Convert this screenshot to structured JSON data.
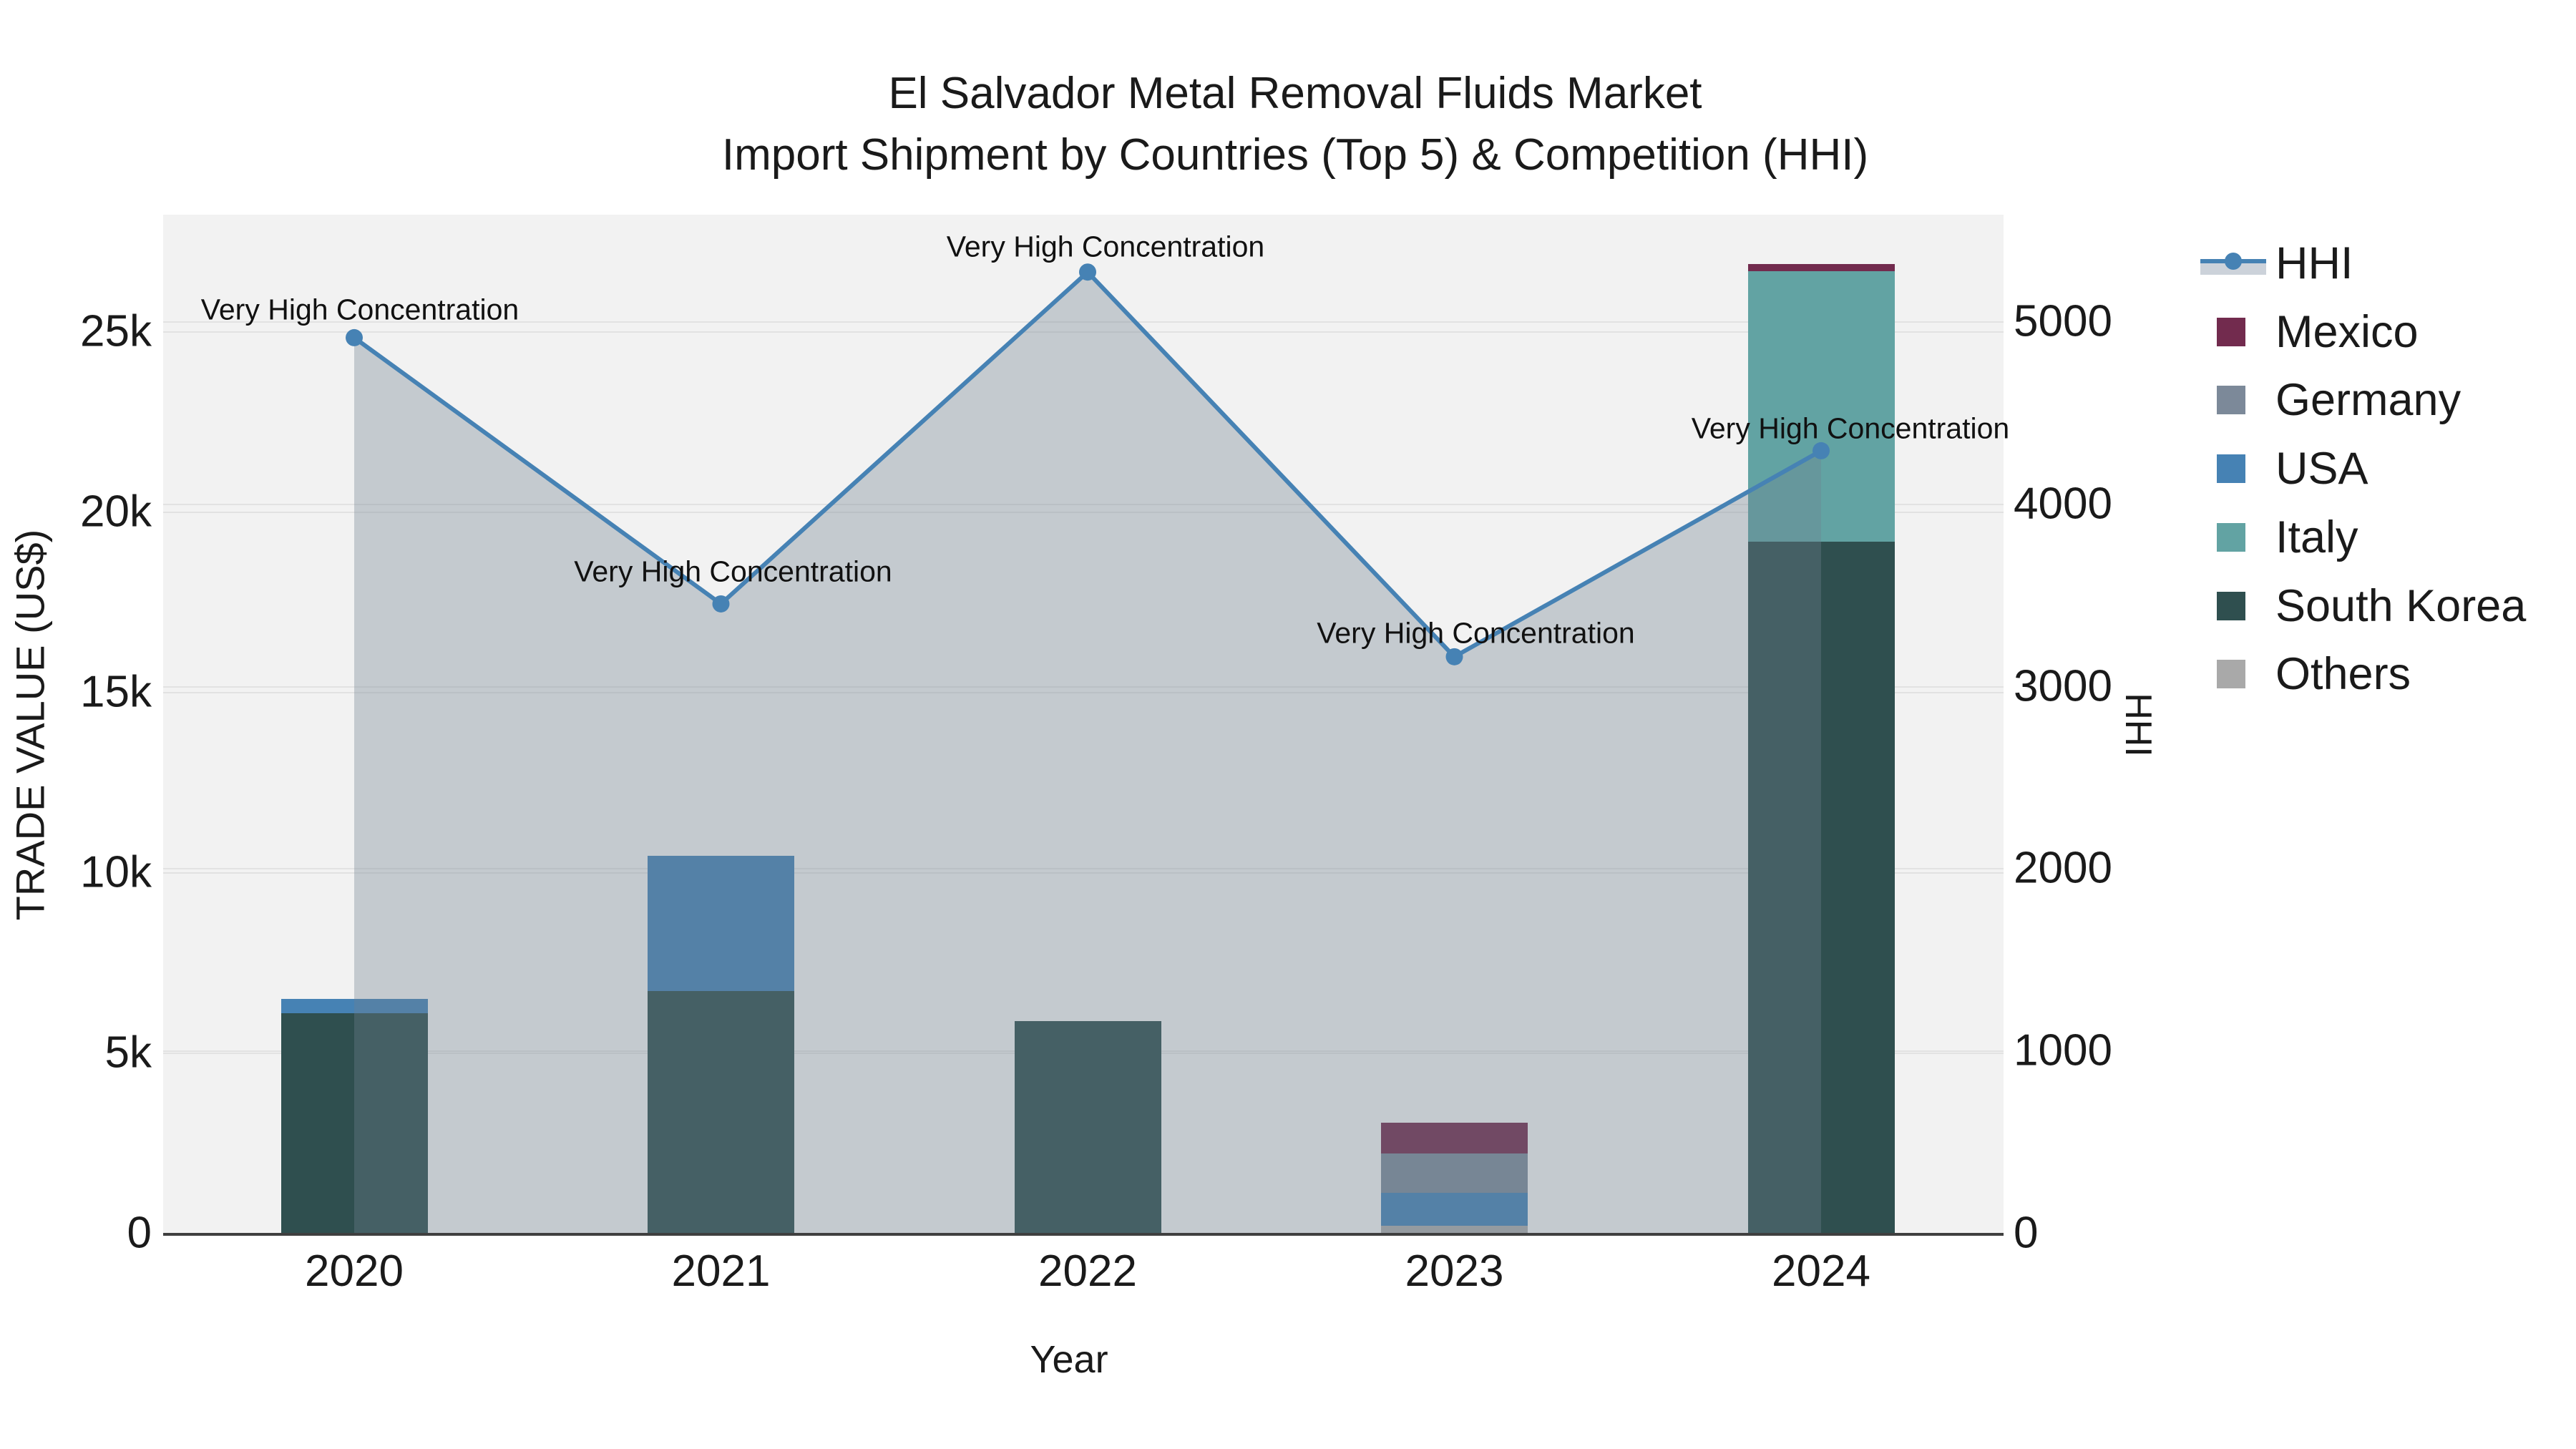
{
  "title": {
    "line1": "El Salvador Metal Removal Fluids Market",
    "line2": "Import Shipment by Countries (Top 5) & Competition (HHI)"
  },
  "axes": {
    "x": {
      "title": "Year",
      "ticks": [
        "2020",
        "2021",
        "2022",
        "2023",
        "2024"
      ]
    },
    "y_left": {
      "title": "TRADE VALUE (US$)",
      "tick_labels": [
        "0",
        "5k",
        "10k",
        "15k",
        "20k",
        "25k"
      ],
      "tick_values": [
        0,
        5000,
        10000,
        15000,
        20000,
        25000
      ],
      "range": [
        0,
        28230
      ]
    },
    "y_right": {
      "title": "HHI",
      "tick_labels": [
        "0",
        "1000",
        "2000",
        "3000",
        "4000",
        "5000"
      ],
      "tick_values": [
        0,
        1000,
        2000,
        3000,
        4000,
        5000
      ],
      "range": [
        0,
        5585
      ]
    }
  },
  "legend": [
    {
      "label": "HHI",
      "type": "line",
      "color": "#4682B4"
    },
    {
      "label": "Mexico",
      "type": "swatch",
      "color": "#722B4E"
    },
    {
      "label": "Germany",
      "type": "swatch",
      "color": "#7C8999"
    },
    {
      "label": "USA",
      "type": "swatch",
      "color": "#4682B4"
    },
    {
      "label": "Italy",
      "type": "swatch",
      "color": "#62A3A3"
    },
    {
      "label": "South Korea",
      "type": "swatch",
      "color": "#2F4F4F"
    },
    {
      "label": "Others",
      "type": "swatch",
      "color": "#A9A9A9"
    }
  ],
  "chart_data": {
    "type": "combo-stacked-bar-plus-line",
    "categories": [
      "2020",
      "2021",
      "2022",
      "2023",
      "2024"
    ],
    "bar_series": [
      {
        "name": "Others",
        "color": "#A9A9A9",
        "values": [
          0,
          0,
          0,
          200,
          0
        ]
      },
      {
        "name": "South Korea",
        "color": "#2F4F4F",
        "values": [
          6100,
          6700,
          5870,
          0,
          19170
        ]
      },
      {
        "name": "USA",
        "color": "#4682B4",
        "values": [
          380,
          3750,
          0,
          910,
          0
        ]
      },
      {
        "name": "Germany",
        "color": "#7C8999",
        "values": [
          0,
          0,
          0,
          1090,
          0
        ]
      },
      {
        "name": "Italy",
        "color": "#62A3A3",
        "values": [
          0,
          0,
          0,
          0,
          7500
        ]
      },
      {
        "name": "Mexico",
        "color": "#722B4E",
        "values": [
          0,
          0,
          0,
          850,
          200
        ]
      }
    ],
    "line_series": {
      "name": "HHI",
      "axis": "right",
      "color": "#4682B4",
      "area_fill": "rgba(112,128,144,0.35)",
      "values": [
        4910,
        3450,
        5270,
        3160,
        4290
      ]
    },
    "annotations": [
      {
        "category": "2020",
        "text": "Very High Concentration"
      },
      {
        "category": "2021",
        "text": "Very High Concentration"
      },
      {
        "category": "2022",
        "text": "Very High Concentration"
      },
      {
        "category": "2023",
        "text": "Very High Concentration"
      },
      {
        "category": "2024",
        "text": "Very High Concentration"
      }
    ],
    "title": "El Salvador Metal Removal Fluids Market — Import Shipment by Countries (Top 5) & Competition (HHI)",
    "xlabel": "Year",
    "ylabel_left": "TRADE VALUE (US$)",
    "ylabel_right": "HHI",
    "grid": true,
    "legend_position": "right"
  },
  "colors": {
    "plot_background": "#f2f2f2",
    "gridline": "#e2e2e2",
    "axis_line": "#3f3f3f",
    "text": "#1a1a1a"
  }
}
